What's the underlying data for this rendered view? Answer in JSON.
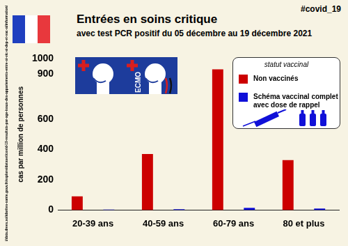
{
  "chart_data": {
    "type": "bar",
    "hashtag": "#covid_19",
    "title": "Entrées en soins critique",
    "subtitle": "avec test PCR positif du 05 décembre au 19 décembre 2021",
    "y_label": "cas par million de personnes",
    "icon_text": "ECMO",
    "legend_title": "statut vaccinal",
    "source": "//data.drees.solidarites-sante.gouv.fr/explore/dataset/covid-19-resultats-par-age-issus-des-appariements-entre-si-vic-si-dep-et-vac-si/information/",
    "categories": [
      "20-39 ans",
      "40-59 ans",
      "60-79 ans",
      "80 et plus"
    ],
    "series": [
      {
        "name": "Non vaccinés",
        "color": "#cc0000",
        "values": [
          90,
          370,
          930,
          330
        ]
      },
      {
        "name": "Schéma vaccinal complet avec dose de rappel",
        "color": "#1010d8",
        "values": [
          3,
          5,
          15,
          10
        ]
      }
    ],
    "ylim": [
      0,
      1000
    ],
    "yticks": [
      0,
      200,
      400,
      600,
      900,
      1000
    ],
    "grid": false,
    "legend": "top right"
  }
}
